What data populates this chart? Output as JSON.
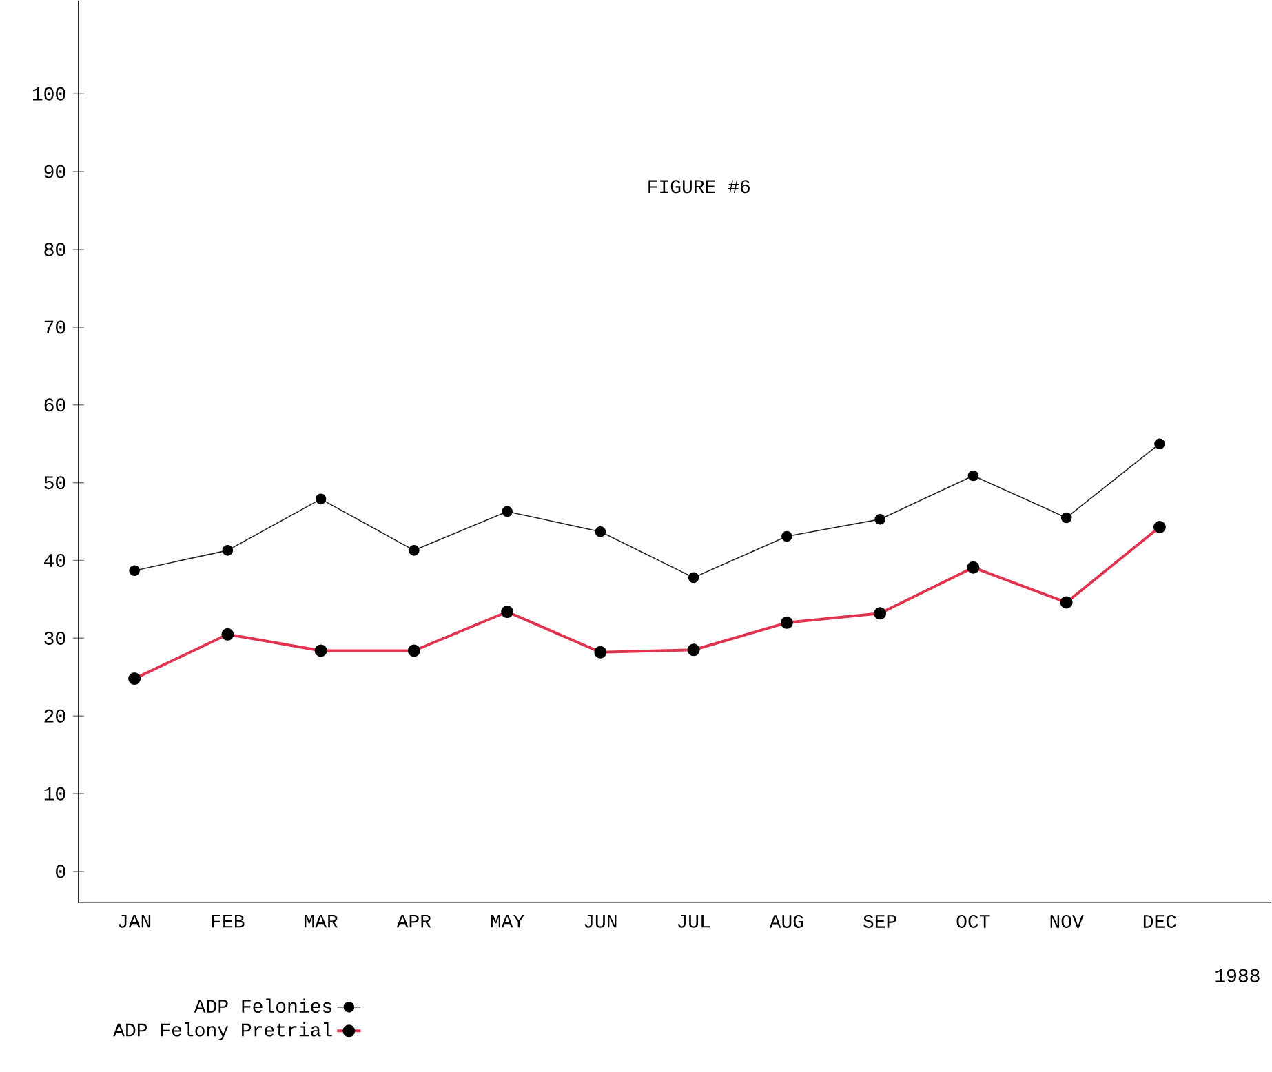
{
  "chart_data": {
    "type": "line",
    "title": "FIGURE #6",
    "categories": [
      "JAN",
      "FEB",
      "MAR",
      "APR",
      "MAY",
      "JUN",
      "JUL",
      "AUG",
      "SEP",
      "OCT",
      "NOV",
      "DEC"
    ],
    "series": [
      {
        "name": "ADP Felonies",
        "color": "#222222",
        "values": [
          38.7,
          41.3,
          47.9,
          41.3,
          46.3,
          43.7,
          37.8,
          43.1,
          45.3,
          50.9,
          45.5,
          55.0
        ]
      },
      {
        "name": "ADP Felony Pretrial",
        "color": "#e0334f",
        "values": [
          24.8,
          30.5,
          28.4,
          28.4,
          33.4,
          28.2,
          28.5,
          32.0,
          33.2,
          39.1,
          34.6,
          44.3
        ]
      }
    ],
    "ylim": [
      -4,
      112
    ],
    "yticks": [
      0,
      10,
      20,
      30,
      40,
      50,
      60,
      70,
      80,
      90,
      100
    ],
    "marker": "circle",
    "line_style": "solid",
    "grid": false,
    "legend": "bottom left",
    "annotations": [
      "1988"
    ]
  }
}
